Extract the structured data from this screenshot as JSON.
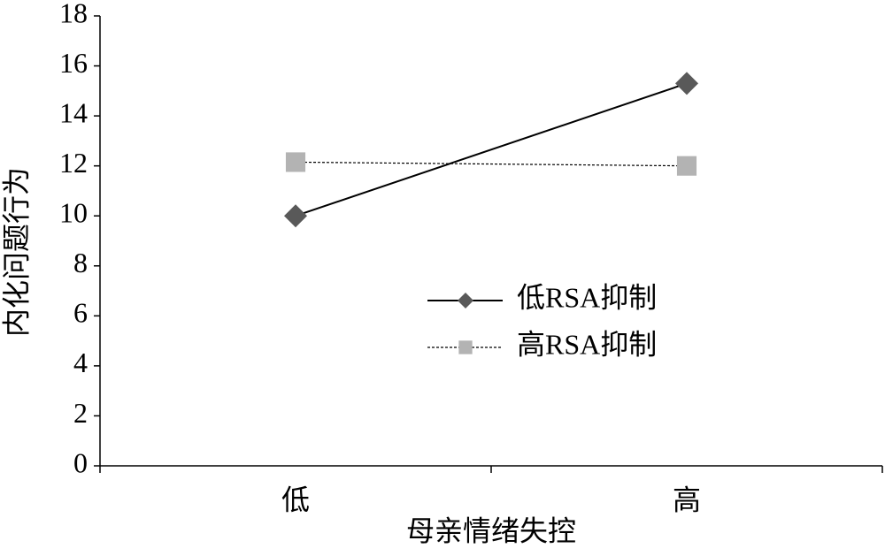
{
  "chart_data": {
    "type": "line",
    "x_label": "母亲情绪失控",
    "y_label": "内化问题行为",
    "categories": [
      "低",
      "高"
    ],
    "series": [
      {
        "name": "低RSA抑制",
        "color": "#595959",
        "line_color": "#000000",
        "line_style": "solid",
        "marker": "diamond",
        "values": [
          10,
          15.3
        ]
      },
      {
        "name": "高RSA抑制",
        "color": "#b3b3b3",
        "line_color": "#000000",
        "line_style": "dashed",
        "marker": "square",
        "values": [
          12.15,
          12
        ]
      }
    ],
    "ylim": [
      0,
      18
    ],
    "yticks": [
      0,
      2,
      4,
      6,
      8,
      10,
      12,
      14,
      16,
      18
    ],
    "grid": false
  }
}
